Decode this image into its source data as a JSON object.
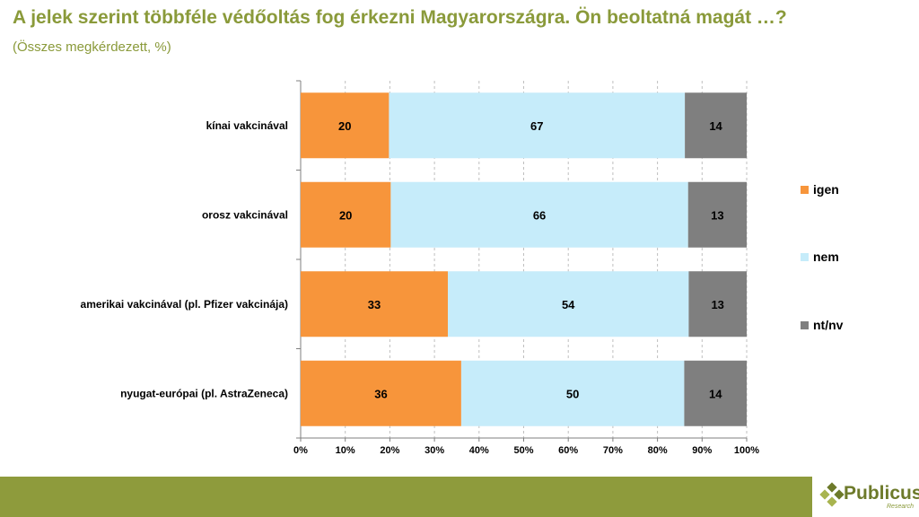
{
  "header": {
    "title": "A jelek szerint többféle védőoltás fog érkezni Magyarországra. Ön beoltatná magát …?",
    "subtitle": "(Összes megkérdezett, %)"
  },
  "brand": {
    "name": "Publicus",
    "sub": "Research"
  },
  "colors": {
    "igen": "#f7953b",
    "nem": "#c6ecfa",
    "ntnv": "#7f7f7f",
    "accent": "#8e9b3c"
  },
  "chart_data": {
    "type": "bar",
    "orientation": "horizontal",
    "stacked": true,
    "title": "A jelek szerint többféle védőoltás fog érkezni Magyarországra. Ön beoltatná magát …?",
    "subtitle": "(Összes megkérdezett, %)",
    "categories": [
      "kínai vakcinával",
      "orosz vakcinával",
      "amerikai vakcinával (pl. Pfizer vakcinája)",
      "nyugat-európai (pl. AstraZeneca)"
    ],
    "series": [
      {
        "name": "igen",
        "values": [
          20,
          20,
          33,
          36
        ]
      },
      {
        "name": "nem",
        "values": [
          67,
          66,
          54,
          50
        ]
      },
      {
        "name": "nt/nv",
        "values": [
          14,
          13,
          13,
          14
        ]
      }
    ],
    "xlim": [
      0,
      100
    ],
    "xticks": [
      "0%",
      "10%",
      "20%",
      "30%",
      "40%",
      "50%",
      "60%",
      "70%",
      "80%",
      "90%",
      "100%"
    ],
    "grid": true,
    "legend": "right"
  }
}
